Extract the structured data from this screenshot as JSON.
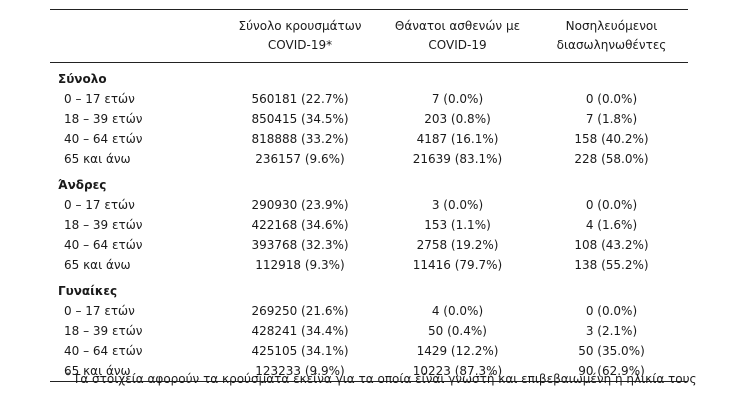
{
  "headers": {
    "col1": [
      "Σύνολο κρουσμάτων",
      "COVID-19*"
    ],
    "col2": [
      "Θάνατοι ασθενών με",
      "COVID-19"
    ],
    "col3": [
      "Νοσηλευόμενοι",
      "διασωληνωθέντες"
    ]
  },
  "groups": [
    {
      "title": "Σύνολο",
      "rows": [
        {
          "age": "0 – 17 ετών",
          "cases": "560181 (22.7%)",
          "deaths": "7 (0.0%)",
          "intubated": "0 (0.0%)"
        },
        {
          "age": "18 – 39 ετών",
          "cases": "850415 (34.5%)",
          "deaths": "203 (0.8%)",
          "intubated": "7 (1.8%)"
        },
        {
          "age": "40 – 64 ετών",
          "cases": "818888 (33.2%)",
          "deaths": "4187 (16.1%)",
          "intubated": "158 (40.2%)"
        },
        {
          "age": "65 και άνω",
          "cases": "236157 (9.6%)",
          "deaths": "21639 (83.1%)",
          "intubated": "228 (58.0%)"
        }
      ]
    },
    {
      "title": "Άνδρες",
      "rows": [
        {
          "age": "0 – 17 ετών",
          "cases": "290930 (23.9%)",
          "deaths": "3 (0.0%)",
          "intubated": "0 (0.0%)"
        },
        {
          "age": "18 – 39 ετών",
          "cases": "422168 (34.6%)",
          "deaths": "153 (1.1%)",
          "intubated": "4 (1.6%)"
        },
        {
          "age": "40 – 64 ετών",
          "cases": "393768 (32.3%)",
          "deaths": "2758 (19.2%)",
          "intubated": "108 (43.2%)"
        },
        {
          "age": "65 και άνω",
          "cases": "112918 (9.3%)",
          "deaths": "11416 (79.7%)",
          "intubated": "138 (55.2%)"
        }
      ]
    },
    {
      "title": "Γυναίκες",
      "rows": [
        {
          "age": "0 – 17 ετών",
          "cases": "269250 (21.6%)",
          "deaths": "4 (0.0%)",
          "intubated": "0 (0.0%)"
        },
        {
          "age": "18 – 39 ετών",
          "cases": "428241 (34.4%)",
          "deaths": "50 (0.4%)",
          "intubated": "3 (2.1%)"
        },
        {
          "age": "40 – 64 ετών",
          "cases": "425105 (34.1%)",
          "deaths": "1429 (12.2%)",
          "intubated": "50 (35.0%)"
        },
        {
          "age": "65 και άνω",
          "cases": "123233 (9.9%)",
          "deaths": "10223 (87.3%)",
          "intubated": "90 (62.9%)"
        }
      ]
    }
  ],
  "footnote": {
    "marker": "*",
    "text": "Τα στοιχεία αφορούν τα κρούσματα εκείνα για τα οποία είναι γνωστή και επιβεβαιωμένη η ηλικία τους"
  }
}
